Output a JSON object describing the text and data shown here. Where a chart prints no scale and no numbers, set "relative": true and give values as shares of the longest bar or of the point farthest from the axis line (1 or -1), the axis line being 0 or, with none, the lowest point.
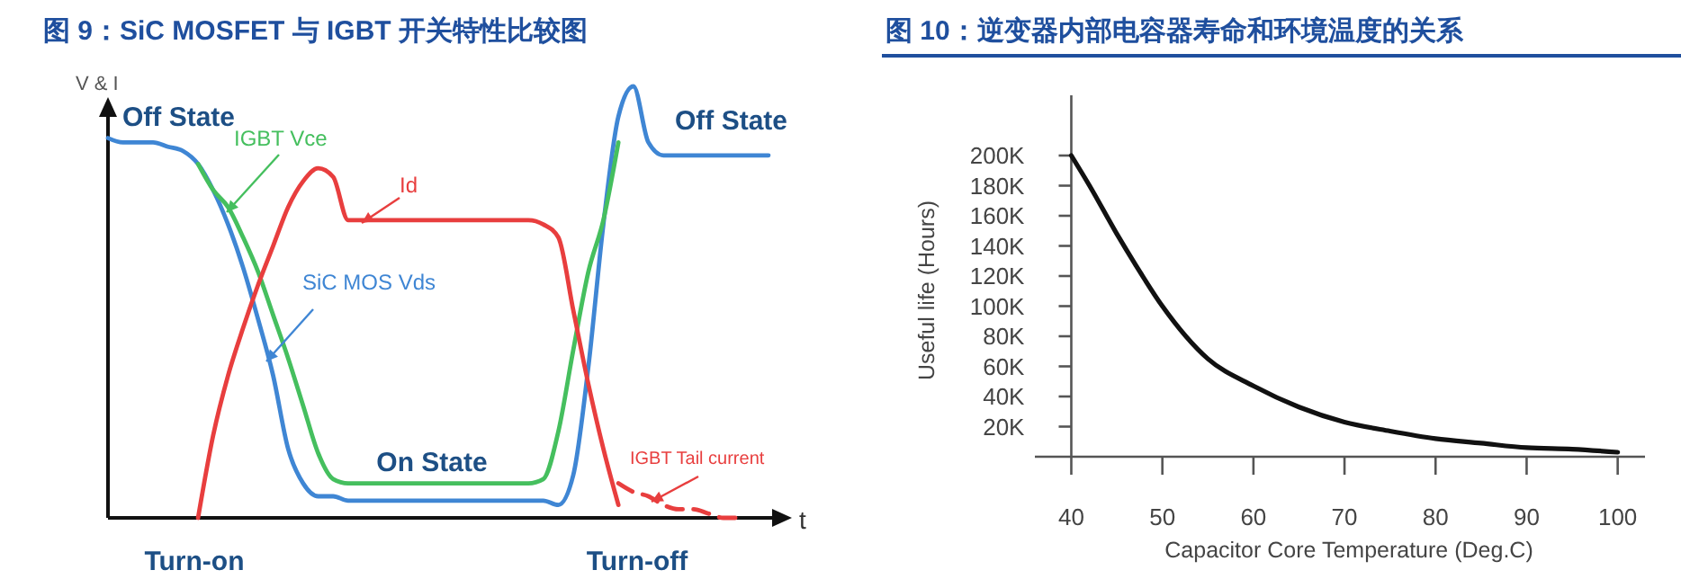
{
  "chart_data": [
    {
      "type": "line",
      "title": "图 9：SiC MOSFET 与 IGBT  开关特性比较图",
      "xlabel": "t",
      "ylabel": "V & I",
      "relative": true,
      "marker": "none",
      "annotations": [
        "Off State",
        "Off State",
        "On State",
        "Turn-on",
        "Turn-off"
      ],
      "categories": [
        null,
        null,
        null,
        null,
        null,
        null,
        null,
        null,
        null,
        null,
        null,
        null,
        null,
        null,
        null,
        null,
        null,
        null,
        null,
        null,
        null,
        null,
        null,
        null,
        null,
        null,
        null,
        null,
        null,
        null,
        null,
        null,
        null,
        null,
        null,
        null,
        null,
        null,
        null,
        null,
        null,
        null,
        null,
        null,
        null
      ],
      "series": [
        {
          "name": "SiC MOS Vds",
          "color": "#3f86d4",
          "line_style": "solid",
          "values": [
            0.88,
            0.87,
            0.87,
            0.87,
            0.86,
            0.85,
            0.82,
            0.76,
            0.68,
            0.58,
            0.46,
            0.33,
            0.16,
            0.08,
            0.05,
            0.05,
            0.04,
            0.04,
            0.04,
            0.04,
            0.04,
            0.04,
            0.04,
            0.04,
            0.04,
            0.04,
            0.04,
            0.04,
            0.04,
            0.04,
            0.03,
            0.1,
            0.35,
            0.68,
            0.93,
            1,
            0.87,
            0.84,
            0.84,
            0.84,
            0.84,
            0.84,
            0.84,
            0.84,
            0.84
          ]
        },
        {
          "name": "IGBT Vce",
          "color": "#45bf5e",
          "line_style": "solid",
          "values": [
            null,
            null,
            null,
            null,
            null,
            null,
            0.82,
            0.76,
            0.72,
            0.65,
            0.57,
            0.47,
            0.37,
            0.26,
            0.15,
            0.09,
            0.08,
            0.08,
            0.08,
            0.08,
            0.08,
            0.08,
            0.08,
            0.08,
            0.08,
            0.08,
            0.08,
            0.08,
            0.08,
            0.09,
            0.2,
            0.39,
            0.57,
            0.69,
            0.87,
            null,
            null,
            null,
            null,
            null,
            null,
            null,
            null,
            null,
            null
          ]
        },
        {
          "name": "Id",
          "color": "#e83e3e",
          "line_style": "solid",
          "values": [
            null,
            null,
            null,
            null,
            null,
            null,
            0,
            0.19,
            0.33,
            0.44,
            0.54,
            0.63,
            0.72,
            0.78,
            0.81,
            0.79,
            0.69,
            0.69,
            0.69,
            0.69,
            0.69,
            0.69,
            0.69,
            0.69,
            0.69,
            0.69,
            0.69,
            0.69,
            0.69,
            0.68,
            0.65,
            0.48,
            0.31,
            0.16,
            0.03,
            null,
            null,
            null,
            null,
            null,
            null,
            null,
            null,
            null,
            null
          ]
        },
        {
          "name": "IGBT Tail current",
          "color": "#e83e3e",
          "line_style": "dashed",
          "values": [
            null,
            null,
            null,
            null,
            null,
            null,
            null,
            null,
            null,
            null,
            null,
            null,
            null,
            null,
            null,
            null,
            null,
            null,
            null,
            null,
            null,
            null,
            null,
            null,
            null,
            null,
            null,
            null,
            null,
            null,
            null,
            null,
            null,
            null,
            0.08,
            0.06,
            0.05,
            0.03,
            0.02,
            0.02,
            0.01,
            0,
            0,
            null,
            null
          ]
        }
      ]
    },
    {
      "type": "line",
      "title": "图 10：逆变器内部电容器寿命和环境温度的关系",
      "xlabel": "Capacitor Core Temperature (Deg.C)",
      "ylabel": "Useful life (Hours)",
      "marker": "none",
      "xlim": [
        36,
        103
      ],
      "xticks": [
        40,
        50,
        60,
        70,
        80,
        90,
        100
      ],
      "ylim": [
        0,
        240000
      ],
      "yticks": [
        {
          "value": 20000,
          "label": "20K"
        },
        {
          "value": 40000,
          "label": "40K"
        },
        {
          "value": 60000,
          "label": "60K"
        },
        {
          "value": 80000,
          "label": "80K"
        },
        {
          "value": 100000,
          "label": "100K"
        },
        {
          "value": 120000,
          "label": "120K"
        },
        {
          "value": 140000,
          "label": "140K"
        },
        {
          "value": 160000,
          "label": "160K"
        },
        {
          "value": 180000,
          "label": "180K"
        },
        {
          "value": 200000,
          "label": "200K"
        }
      ],
      "series": [
        {
          "color": "#111111",
          "line_style": "solid",
          "x": [
            40,
            42,
            45,
            47,
            50,
            55,
            60,
            65,
            70,
            75,
            80,
            85,
            90,
            95,
            100
          ],
          "values": [
            200000,
            180000,
            148000,
            128000,
            100000,
            65000,
            47000,
            33000,
            23000,
            17000,
            12000,
            9000,
            6000,
            5000,
            3000
          ]
        }
      ]
    }
  ]
}
